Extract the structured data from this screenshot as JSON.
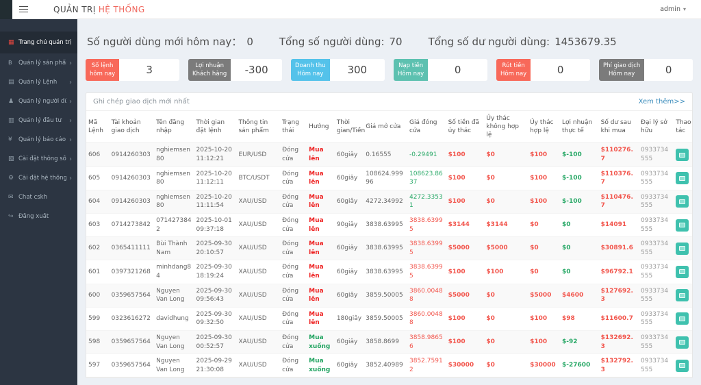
{
  "navbar": {
    "title_primary": "QUẢN TRỊ",
    "title_accent": "HỆ THỐNG",
    "user_label": "admin",
    "caret": "▾"
  },
  "sidebar": {
    "items": [
      {
        "id": "dashboard",
        "label": "Trang chủ quản trị",
        "icon": "dashboard",
        "glyph": "▦",
        "active": true,
        "has_submenu": false
      },
      {
        "id": "products",
        "label": "Quản lý sản phẩm",
        "icon": "bitcoin",
        "glyph": "฿",
        "active": false,
        "has_submenu": true
      },
      {
        "id": "orders",
        "label": "Quản lý Lệnh",
        "icon": "file",
        "glyph": "▤",
        "active": false,
        "has_submenu": true
      },
      {
        "id": "users",
        "label": "Quản lý người dùng",
        "icon": "user",
        "glyph": "♟",
        "active": false,
        "has_submenu": true
      },
      {
        "id": "investments",
        "label": "Quản lý đầu tư",
        "icon": "book",
        "glyph": "▥",
        "active": false,
        "has_submenu": true
      },
      {
        "id": "reports",
        "label": "Quản lý báo cáo",
        "icon": "yen",
        "glyph": "¥",
        "active": false,
        "has_submenu": true
      },
      {
        "id": "parameters",
        "label": "Cài đặt thông số",
        "icon": "file",
        "glyph": "▧",
        "active": false,
        "has_submenu": true
      },
      {
        "id": "system-settings",
        "label": "Cài đặt hệ thống",
        "icon": "gears",
        "glyph": "⚙",
        "active": false,
        "has_submenu": true
      },
      {
        "id": "chat-cskh",
        "label": "Chat cskh",
        "icon": "comment",
        "glyph": "✉",
        "active": false,
        "has_submenu": false
      },
      {
        "id": "logout",
        "label": "Đăng xuất",
        "icon": "sign-out",
        "glyph": "↪",
        "active": false,
        "has_submenu": false
      }
    ]
  },
  "stats": {
    "new_users_label": "Số người dùng mới hôm nay：",
    "new_users_value": "0",
    "total_users_label": "Tổng số người dùng:",
    "total_users_value": "70",
    "total_balance_label": "Tổng số dư người dùng:",
    "total_balance_value": "1453679.35"
  },
  "stat_boxes": [
    {
      "id": "orders-today",
      "label_line1": "Số lệnh",
      "label_line2": "hôm nay",
      "value": "3",
      "color": "#f8695a"
    },
    {
      "id": "customer-profit",
      "label_line1": "Lợi nhuận",
      "label_line2": "Khách hàng",
      "value": "-300",
      "color": "#7b7b7b"
    },
    {
      "id": "revenue-today",
      "label_line1": "Doanh thu",
      "label_line2": "Hôm nay",
      "value": "300",
      "color": "#54c2ea"
    },
    {
      "id": "deposits-today",
      "label_line1": "Nạp tiền",
      "label_line2": "Hôm nay",
      "value": "0",
      "color": "#5dc1b0"
    },
    {
      "id": "withdrawals-today",
      "label_line1": "Rút tiền",
      "label_line2": "Hôm nay",
      "value": "0",
      "color": "#f8695a"
    },
    {
      "id": "fees-today",
      "label_line1": "Phí giao dịch",
      "label_line2": "Hôm nay",
      "value": "0",
      "color": "#7b7b7b"
    }
  ],
  "panel": {
    "title": "Ghi chép giao dịch mới nhất",
    "more_link": "Xem thêm>>"
  },
  "table": {
    "columns": [
      {
        "label": "Mã Lệnh",
        "key": "id"
      },
      {
        "label": "Tài khoản giao dịch",
        "key": "account"
      },
      {
        "label": "Tên đăng nhập",
        "key": "username"
      },
      {
        "label": "Thời gian đặt lệnh",
        "key": "order_time"
      },
      {
        "label": "Thông tin sản phẩm",
        "key": "product"
      },
      {
        "label": "Trạng thái",
        "key": "status"
      },
      {
        "label": "Hướng",
        "key": "direction",
        "bold": true
      },
      {
        "label": "Thời gian/Tiền",
        "key": "duration"
      },
      {
        "label": "Giá mở cửa",
        "key": "open_price"
      },
      {
        "label": "Giá đóng cửa",
        "key": "close_price"
      },
      {
        "label": "Số tiền đã ủy thác",
        "key": "entrusted_amount",
        "color": "red",
        "bold": true
      },
      {
        "label": "Ủy thác không hợp lệ",
        "key": "invalid_entrust",
        "color": "red",
        "bold": true
      },
      {
        "label": "Ủy thác hợp lệ",
        "key": "valid_entrust",
        "color": "red",
        "bold": true
      },
      {
        "label": "Lợi nhuận thực tế",
        "key": "actual_profit",
        "bold": true
      },
      {
        "label": "Số dư sau khi mua",
        "key": "balance_after",
        "color": "red",
        "bold": true
      },
      {
        "label": "Đại lý sở hữu",
        "key": "agent",
        "color": "gray"
      },
      {
        "label": "Thao tác",
        "key": "action"
      }
    ],
    "rows": [
      {
        "id": "606",
        "account": "0914260303",
        "username": "nghiemsen80",
        "order_time": "2025-10-20 11:12:21",
        "product": "EUR/USD",
        "status": "Đóng cửa",
        "direction": "Mua lên",
        "direction_color": "up",
        "duration": "60giây",
        "open_price": "0.16555",
        "close_price": "-0.29491",
        "close_price_color": "green",
        "entrusted_amount": "$100",
        "invalid_entrust": "$0",
        "valid_entrust": "$100",
        "actual_profit": "$-100",
        "actual_profit_color": "green",
        "balance_after": "$110276.7",
        "agent": "0933734555"
      },
      {
        "id": "605",
        "account": "0914260303",
        "username": "nghiemsen80",
        "order_time": "2025-10-20 11:12:11",
        "product": "BTC/USDT",
        "status": "Đóng cửa",
        "direction": "Mua lên",
        "direction_color": "up",
        "duration": "60giây",
        "open_price": "108624.99996",
        "close_price": "108623.8637",
        "close_price_color": "green",
        "entrusted_amount": "$100",
        "invalid_entrust": "$0",
        "valid_entrust": "$100",
        "actual_profit": "$-100",
        "actual_profit_color": "green",
        "balance_after": "$110376.7",
        "agent": "0933734555"
      },
      {
        "id": "604",
        "account": "0914260303",
        "username": "nghiemsen80",
        "order_time": "2025-10-20 11:11:54",
        "product": "XAU/USD",
        "status": "Đóng cửa",
        "direction": "Mua lên",
        "direction_color": "up",
        "duration": "60giây",
        "open_price": "4272.34992",
        "close_price": "4272.33531",
        "close_price_color": "green",
        "entrusted_amount": "$100",
        "invalid_entrust": "$0",
        "valid_entrust": "$100",
        "actual_profit": "$-100",
        "actual_profit_color": "green",
        "balance_after": "$110476.7",
        "agent": "0933734555"
      },
      {
        "id": "603",
        "account": "0714273842",
        "username": "0714273842",
        "order_time": "2025-10-01 09:37:18",
        "product": "XAU/USD",
        "status": "Đóng cửa",
        "direction": "Mua lên",
        "direction_color": "up",
        "duration": "90giây",
        "open_price": "3838.63995",
        "close_price": "3838.63995",
        "close_price_color": "red",
        "entrusted_amount": "$3144",
        "invalid_entrust": "$3144",
        "valid_entrust": "$0",
        "actual_profit": "$0",
        "actual_profit_color": "green",
        "balance_after": "$14091",
        "agent": "0933734555"
      },
      {
        "id": "602",
        "account": "0365411111",
        "username": "Bùi Thành Nam",
        "order_time": "2025-09-30 20:10:57",
        "product": "XAU/USD",
        "status": "Đóng cửa",
        "direction": "Mua lên",
        "direction_color": "up",
        "duration": "60giây",
        "open_price": "3838.63995",
        "close_price": "3838.63995",
        "close_price_color": "red",
        "entrusted_amount": "$5000",
        "invalid_entrust": "$5000",
        "valid_entrust": "$0",
        "actual_profit": "$0",
        "actual_profit_color": "green",
        "balance_after": "$30891.6",
        "agent": "0933734555"
      },
      {
        "id": "601",
        "account": "0397321268",
        "username": "minhdang84",
        "order_time": "2025-09-30 18:19:24",
        "product": "XAU/USD",
        "status": "Đóng cửa",
        "direction": "Mua lên",
        "direction_color": "up",
        "duration": "60giây",
        "open_price": "3838.63995",
        "close_price": "3838.63995",
        "close_price_color": "red",
        "entrusted_amount": "$100",
        "invalid_entrust": "$100",
        "valid_entrust": "$0",
        "actual_profit": "$0",
        "actual_profit_color": "green",
        "balance_after": "$96792.1",
        "agent": "0933734555"
      },
      {
        "id": "600",
        "account": "0359657564",
        "username": "Nguyen Van Long",
        "order_time": "2025-09-30 09:56:43",
        "product": "XAU/USD",
        "status": "Đóng cửa",
        "direction": "Mua lên",
        "direction_color": "up",
        "duration": "60giây",
        "open_price": "3859.50005",
        "close_price": "3860.00488",
        "close_price_color": "red",
        "entrusted_amount": "$5000",
        "invalid_entrust": "$0",
        "valid_entrust": "$5000",
        "actual_profit": "$4600",
        "actual_profit_color": "red",
        "balance_after": "$127692.3",
        "agent": "0933734555"
      },
      {
        "id": "599",
        "account": "0323616272",
        "username": "davidhung",
        "order_time": "2025-09-30 09:32:50",
        "product": "XAU/USD",
        "status": "Đóng cửa",
        "direction": "Mua lên",
        "direction_color": "up",
        "duration": "180giây",
        "open_price": "3859.50005",
        "close_price": "3860.00488",
        "close_price_color": "red",
        "entrusted_amount": "$100",
        "invalid_entrust": "$0",
        "valid_entrust": "$100",
        "actual_profit": "$98",
        "actual_profit_color": "red",
        "balance_after": "$11600.7",
        "agent": "0933734555"
      },
      {
        "id": "598",
        "account": "0359657564",
        "username": "Nguyen Van Long",
        "order_time": "2025-09-30 00:52:57",
        "product": "XAU/USD",
        "status": "Đóng cửa",
        "direction": "Mua xuống",
        "direction_color": "down",
        "duration": "60giây",
        "open_price": "3858.8699",
        "close_price": "3858.98656",
        "close_price_color": "red",
        "entrusted_amount": "$100",
        "invalid_entrust": "$0",
        "valid_entrust": "$100",
        "actual_profit": "$-92",
        "actual_profit_color": "green",
        "balance_after": "$132692.3",
        "agent": "0933734555"
      },
      {
        "id": "597",
        "account": "0359657564",
        "username": "Nguyen Van Long",
        "order_time": "2025-09-29 21:30:08",
        "product": "XAU/USD",
        "status": "Đóng cửa",
        "direction": "Mua xuống",
        "direction_color": "down",
        "duration": "60giây",
        "open_price": "3852.40989",
        "close_price": "3852.75912",
        "close_price_color": "red",
        "entrusted_amount": "$30000",
        "invalid_entrust": "$0",
        "valid_entrust": "$30000",
        "actual_profit": "$-27600",
        "actual_profit_color": "green",
        "balance_after": "$132792.3",
        "agent": "0933734555"
      }
    ]
  },
  "colors": {
    "sidebar_bg": "#2c3542",
    "sidebar_active_bg": "#232b35",
    "title_accent": "#f0695f",
    "chip_red": "#f8695a",
    "chip_gray": "#7b7b7b",
    "chip_blue": "#54c2ea",
    "chip_teal": "#5dc1b0",
    "money_red": "#f2564d",
    "money_green": "#2aa968",
    "direction_up_red": "#ee1f1f",
    "direction_down_green": "#1fa35f",
    "link_blue": "#3c8dbc",
    "action_button_teal": "#3fc1ae",
    "page_bg": "#ecf0f5"
  }
}
